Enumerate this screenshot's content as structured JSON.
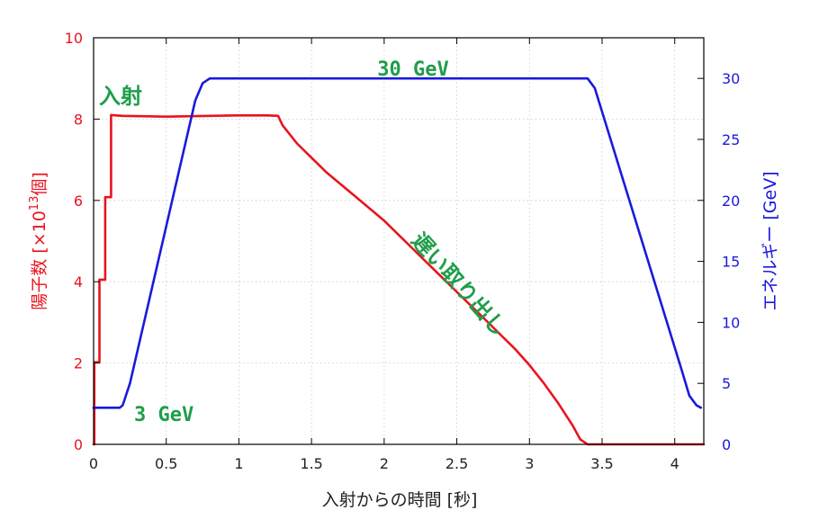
{
  "chart_data": {
    "type": "line",
    "x_axis": {
      "label": "入射からの時間 [秒]",
      "range": [
        0,
        4.2
      ],
      "ticks": [
        "0",
        "0.5",
        "1",
        "1.5",
        "2",
        "2.5",
        "3",
        "3.5",
        "4"
      ],
      "tick_values": [
        0,
        0.5,
        1,
        1.5,
        2,
        2.5,
        3,
        3.5,
        4
      ]
    },
    "y_axis_left": {
      "label_prefix": "陽子数 [×10",
      "label_sup": "13",
      "label_suffix": "個]",
      "range": [
        0,
        10
      ],
      "ticks": [
        "0",
        "2",
        "4",
        "6",
        "8",
        "10"
      ],
      "tick_values": [
        0,
        2,
        4,
        6,
        8,
        10
      ],
      "color": "#e8141e"
    },
    "y_axis_right": {
      "label": "エネルギー [GeV]",
      "range": [
        0,
        33.33
      ],
      "ticks": [
        "0",
        "5",
        "10",
        "15",
        "20",
        "25",
        "30"
      ],
      "tick_values": [
        0,
        5,
        10,
        15,
        20,
        25,
        30
      ],
      "color": "#1a1adb"
    },
    "grid": true,
    "series": [
      {
        "axis": "left",
        "color": "#e8141e",
        "x": [
          0,
          0.005,
          0.005,
          0.04,
          0.04,
          0.08,
          0.08,
          0.12,
          0.12,
          0.2,
          0.5,
          0.8,
          1.0,
          1.2,
          1.27,
          1.3,
          1.4,
          1.5,
          1.6,
          1.7,
          1.8,
          1.9,
          2.0,
          2.1,
          2.2,
          2.3,
          2.4,
          2.5,
          2.6,
          2.7,
          2.8,
          2.9,
          3.0,
          3.1,
          3.2,
          3.3,
          3.35,
          3.4,
          4.2
        ],
        "y": [
          0,
          0,
          2.02,
          2.02,
          4.05,
          4.05,
          6.08,
          6.08,
          8.1,
          8.08,
          8.06,
          8.08,
          8.09,
          8.09,
          8.08,
          7.85,
          7.4,
          7.05,
          6.7,
          6.4,
          6.1,
          5.8,
          5.5,
          5.15,
          4.8,
          4.45,
          4.1,
          3.75,
          3.4,
          3.05,
          2.7,
          2.35,
          1.95,
          1.5,
          1.0,
          0.45,
          0.12,
          0.0,
          0.0
        ]
      },
      {
        "axis": "right",
        "color": "#1a1adb",
        "x": [
          0,
          0.18,
          0.2,
          0.25,
          0.7,
          0.75,
          0.8,
          3.35,
          3.4,
          3.45,
          4.05,
          4.1,
          4.15,
          4.18
        ],
        "y": [
          3,
          3,
          3.2,
          5,
          28.2,
          29.6,
          30,
          30,
          30,
          29.2,
          6,
          4,
          3.2,
          3
        ]
      }
    ],
    "annotations": [
      {
        "text": "30 GeV",
        "color": "#1f9e4a"
      },
      {
        "text": "入射",
        "color": "#1f9e4a"
      },
      {
        "text": "3 GeV",
        "color": "#1f9e4a"
      },
      {
        "text": "遅い取り出し",
        "color": "#1f9e4a"
      }
    ]
  }
}
